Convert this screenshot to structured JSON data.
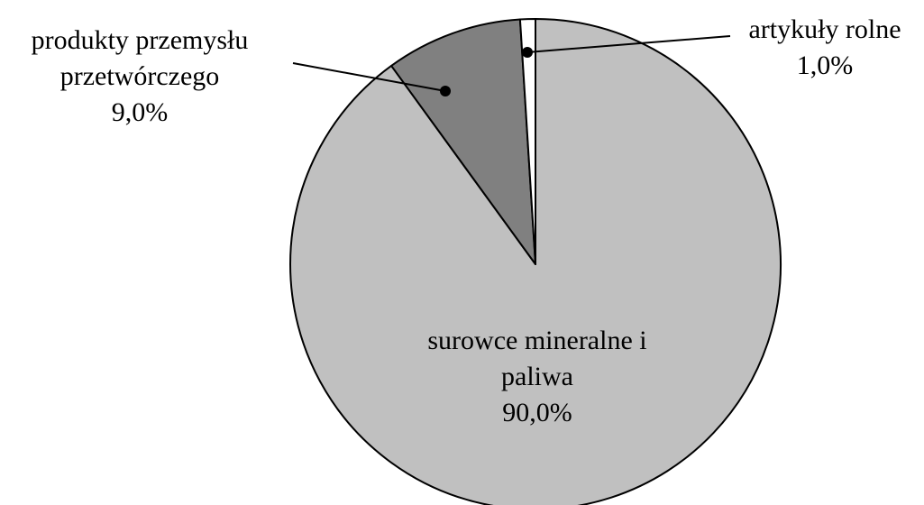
{
  "chart_data": {
    "type": "pie",
    "categories": [
      "surowce mineralne i paliwa",
      "produkty przemysłu przetwórczego",
      "artykuły rolne"
    ],
    "values": [
      90,
      9,
      1
    ],
    "value_labels": [
      "90,0%",
      "9,0%",
      "1,0%"
    ],
    "colors": [
      "#c0c0c0",
      "#808080",
      "#ffffff"
    ]
  }
}
